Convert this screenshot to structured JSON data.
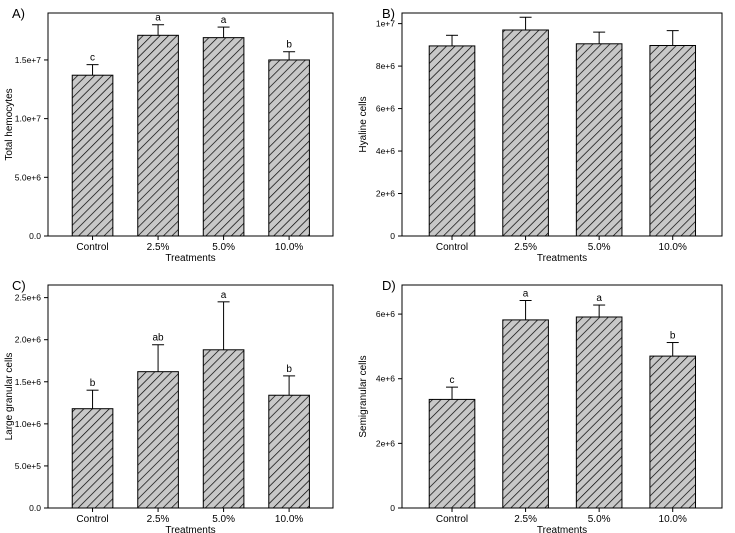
{
  "chart_data": [
    {
      "panel": "A)",
      "type": "bar",
      "xlabel": "Treatments",
      "ylabel": "Total hemocytes",
      "categories": [
        "Control",
        "2.5%",
        "5.0%",
        "10.0%"
      ],
      "values": [
        13700000,
        17100000,
        16900000,
        15000000
      ],
      "errors": [
        900000,
        900000,
        900000,
        700000
      ],
      "letters": [
        "c",
        "a",
        "a",
        "b"
      ],
      "ylim": [
        0,
        19000000
      ],
      "yticks": [
        0,
        5000000,
        10000000,
        15000000
      ],
      "ytick_labels": [
        "0.0",
        "5.0e+6",
        "1.0e+7",
        "1.5e+7"
      ]
    },
    {
      "panel": "B)",
      "type": "bar",
      "xlabel": "Treatments",
      "ylabel": "Hyaline cells",
      "categories": [
        "Control",
        "2.5%",
        "5.0%",
        "10.0%"
      ],
      "values": [
        8950000,
        9700000,
        9050000,
        8970000
      ],
      "errors": [
        500000,
        600000,
        550000,
        700000
      ],
      "letters": [
        "",
        "",
        "",
        ""
      ],
      "ylim": [
        0,
        10500000
      ],
      "yticks": [
        0,
        2000000,
        4000000,
        6000000,
        8000000,
        10000000
      ],
      "ytick_labels": [
        "0",
        "2e+6",
        "4e+6",
        "6e+6",
        "8e+6",
        "1e+7"
      ]
    },
    {
      "panel": "C)",
      "type": "bar",
      "xlabel": "Treatments",
      "ylabel": "Large granular cells",
      "categories": [
        "Control",
        "2.5%",
        "5.0%",
        "10.0%"
      ],
      "values": [
        1180000,
        1620000,
        1880000,
        1340000
      ],
      "errors": [
        220000,
        320000,
        570000,
        230000
      ],
      "letters": [
        "b",
        "ab",
        "a",
        "b"
      ],
      "ylim": [
        0,
        2650000
      ],
      "yticks": [
        0,
        500000,
        1000000,
        1500000,
        2000000,
        2500000
      ],
      "ytick_labels": [
        "0.0",
        "5.0e+5",
        "1.0e+6",
        "1.5e+6",
        "2.0e+6",
        "2.5e+6"
      ]
    },
    {
      "panel": "D)",
      "type": "bar",
      "xlabel": "Treatments",
      "ylabel": "Semigranular  cells",
      "categories": [
        "Control",
        "2.5%",
        "5.0%",
        "10.0%"
      ],
      "values": [
        3360000,
        5820000,
        5910000,
        4700000
      ],
      "errors": [
        380000,
        600000,
        370000,
        420000
      ],
      "letters": [
        "c",
        "a",
        "a",
        "b"
      ],
      "ylim": [
        0,
        6900000
      ],
      "yticks": [
        0,
        2000000,
        4000000,
        6000000
      ],
      "ytick_labels": [
        "0",
        "2e+6",
        "4e+6",
        "6e+6"
      ]
    }
  ]
}
